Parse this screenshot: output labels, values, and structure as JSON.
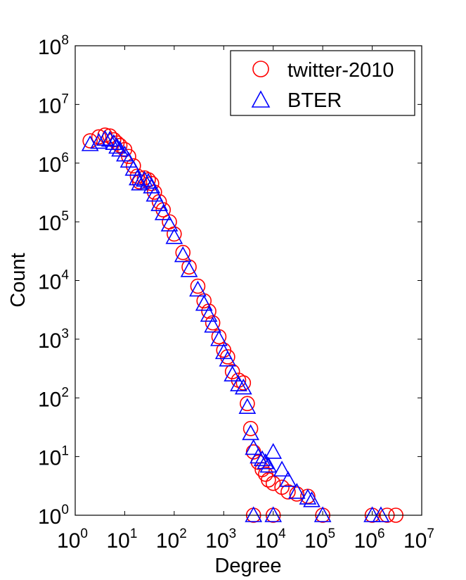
{
  "chart_data": {
    "type": "scatter",
    "xlabel": "Degree",
    "ylabel": "Count",
    "xscale": "log",
    "yscale": "log",
    "xlim": [
      1,
      10000000
    ],
    "ylim": [
      1,
      100000000
    ],
    "x_tick_labels": [
      "10",
      "10",
      "10",
      "10",
      "10",
      "10",
      "10",
      "10"
    ],
    "x_tick_exponents": [
      "0",
      "1",
      "2",
      "3",
      "4",
      "5",
      "6",
      "7"
    ],
    "y_tick_labels": [
      "10",
      "10",
      "10",
      "10",
      "10",
      "10",
      "10",
      "10",
      "10"
    ],
    "y_tick_exponents": [
      "0",
      "1",
      "2",
      "3",
      "4",
      "5",
      "6",
      "7",
      "8"
    ],
    "grid": false,
    "legend_position": "top-right",
    "series": [
      {
        "name": "twitter-2010",
        "marker": "circle",
        "color": "#ff0000",
        "points": [
          [
            2,
            2400000
          ],
          [
            3,
            2800000
          ],
          [
            4,
            3000000
          ],
          [
            5,
            2900000
          ],
          [
            6,
            2500000
          ],
          [
            7,
            2200000
          ],
          [
            8,
            2000000
          ],
          [
            10,
            1700000
          ],
          [
            12,
            1300000
          ],
          [
            15,
            900000
          ],
          [
            18,
            600000
          ],
          [
            20,
            480000
          ],
          [
            25,
            560000
          ],
          [
            30,
            520000
          ],
          [
            35,
            450000
          ],
          [
            40,
            320000
          ],
          [
            50,
            220000
          ],
          [
            60,
            160000
          ],
          [
            80,
            100000
          ],
          [
            100,
            62000
          ],
          [
            150,
            30000
          ],
          [
            200,
            17000
          ],
          [
            300,
            8000
          ],
          [
            400,
            4500
          ],
          [
            500,
            3000
          ],
          [
            600,
            1900
          ],
          [
            800,
            1100
          ],
          [
            1000,
            650
          ],
          [
            1200,
            500
          ],
          [
            1500,
            280
          ],
          [
            2000,
            200
          ],
          [
            2500,
            180
          ],
          [
            3000,
            80
          ],
          [
            3500,
            30
          ],
          [
            4000,
            12
          ],
          [
            5000,
            8
          ],
          [
            6000,
            6
          ],
          [
            7000,
            5
          ],
          [
            8000,
            4
          ],
          [
            10000,
            3.5
          ],
          [
            15000,
            3
          ],
          [
            20000,
            2.5
          ],
          [
            30000,
            2.3
          ],
          [
            50000,
            2.1
          ],
          [
            4000,
            1
          ],
          [
            10000,
            1
          ],
          [
            100000,
            1
          ],
          [
            1000000,
            1
          ],
          [
            2000000,
            1
          ],
          [
            3000000,
            1
          ]
        ]
      },
      {
        "name": "BTER",
        "marker": "triangle",
        "color": "#0000ff",
        "points": [
          [
            2,
            2100000
          ],
          [
            3,
            2300000
          ],
          [
            4,
            2600000
          ],
          [
            5,
            2500000
          ],
          [
            6,
            2200000
          ],
          [
            7,
            1900000
          ],
          [
            8,
            1700000
          ],
          [
            10,
            1400000
          ],
          [
            12,
            1100000
          ],
          [
            15,
            800000
          ],
          [
            18,
            550000
          ],
          [
            20,
            450000
          ],
          [
            25,
            520000
          ],
          [
            30,
            480000
          ],
          [
            35,
            400000
          ],
          [
            40,
            290000
          ],
          [
            50,
            200000
          ],
          [
            60,
            140000
          ],
          [
            80,
            90000
          ],
          [
            100,
            55000
          ],
          [
            150,
            27000
          ],
          [
            200,
            15000
          ],
          [
            300,
            7000
          ],
          [
            400,
            4000
          ],
          [
            500,
            2600
          ],
          [
            600,
            1700
          ],
          [
            800,
            1000
          ],
          [
            1000,
            600
          ],
          [
            1200,
            450
          ],
          [
            1500,
            250
          ],
          [
            2000,
            170
          ],
          [
            2500,
            150
          ],
          [
            3000,
            70
          ],
          [
            3500,
            25
          ],
          [
            4000,
            14
          ],
          [
            5000,
            10
          ],
          [
            6000,
            9
          ],
          [
            7000,
            8
          ],
          [
            8000,
            7
          ],
          [
            10000,
            12
          ],
          [
            15000,
            6
          ],
          [
            20000,
            4
          ],
          [
            30000,
            2.5
          ],
          [
            50000,
            2
          ],
          [
            60000,
            1.8
          ],
          [
            4000,
            1
          ],
          [
            10000,
            1
          ],
          [
            100000,
            1
          ],
          [
            1000000,
            1
          ],
          [
            1500000,
            1
          ]
        ]
      }
    ]
  }
}
